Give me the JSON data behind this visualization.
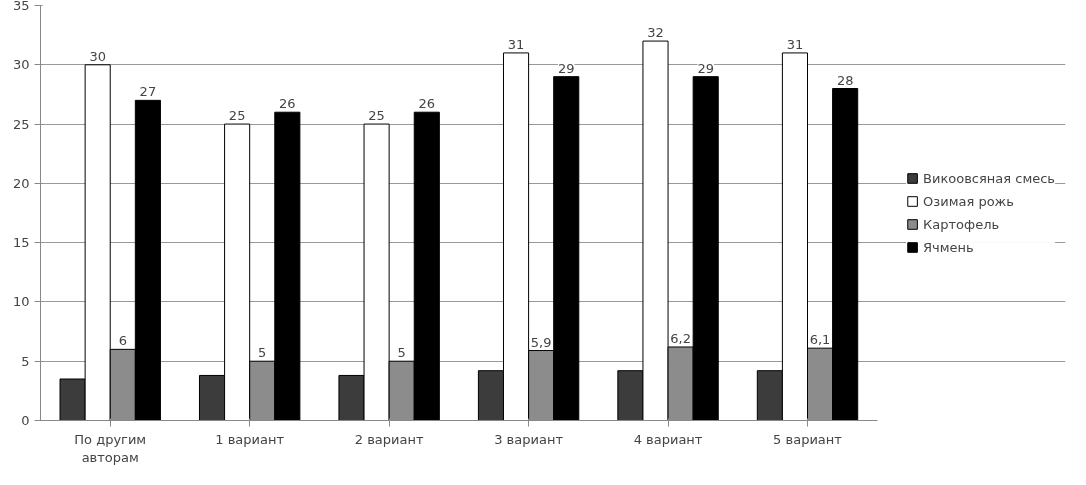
{
  "chart_data": {
    "type": "bar",
    "categories": [
      "По другим\nавторам",
      "1 вариант",
      "2 вариант",
      "3 вариант",
      "4 вариант",
      "5 вариант"
    ],
    "series": [
      {
        "name": "Викоовсяная смесь",
        "color": "#3c3c3c",
        "values": [
          3.5,
          3.8,
          3.8,
          4.2,
          4.2,
          4.2
        ]
      },
      {
        "name": "Озимая рожь",
        "color": "#ffffff",
        "values": [
          30,
          25,
          25,
          31,
          32,
          31
        ],
        "value_labels": [
          "30",
          "25",
          "25",
          "31",
          "32",
          "31"
        ]
      },
      {
        "name": "Картофель",
        "color": "#8c8c8c",
        "values": [
          6,
          5,
          5,
          5.9,
          6.2,
          6.1
        ],
        "value_labels": [
          "6",
          "5",
          "5",
          "5,9",
          "6,2",
          "6,1"
        ]
      },
      {
        "name": "Ячмень",
        "color": "#000000",
        "values": [
          27,
          26,
          26,
          29,
          29,
          28
        ],
        "value_labels": [
          "27",
          "26",
          "26",
          "29",
          "29",
          "28"
        ]
      }
    ],
    "ylim": [
      0,
      35
    ],
    "yticks": [
      0,
      5,
      10,
      15,
      20,
      25,
      30,
      35
    ],
    "grid": "y",
    "legend": "right"
  }
}
